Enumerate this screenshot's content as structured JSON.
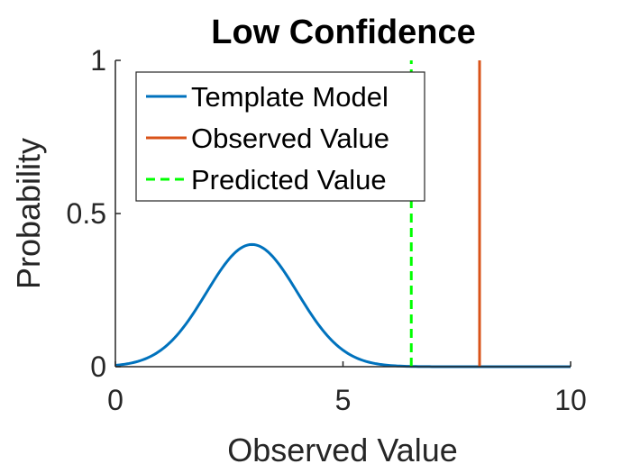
{
  "chart_data": {
    "type": "line",
    "title": "Low Confidence",
    "xlabel": "Observed Value",
    "ylabel": "Probability",
    "xlim": [
      0,
      10
    ],
    "ylim": [
      0,
      1
    ],
    "xticks": [
      0,
      5,
      10
    ],
    "xtick_labels": [
      "0",
      "5",
      "10"
    ],
    "yticks": [
      0,
      0.5,
      1
    ],
    "ytick_labels": [
      "0",
      "0.5",
      "1"
    ],
    "grid": false,
    "legend_position": "top-left",
    "series": [
      {
        "name": "Template Model",
        "kind": "normal-pdf",
        "mean": 3,
        "std": 1,
        "peak": 0.399,
        "color": "#0072BD",
        "style": "solid"
      },
      {
        "name": "Observed Value",
        "kind": "vertical-line",
        "x": 8,
        "y_range": [
          0,
          1
        ],
        "color": "#D95319",
        "style": "solid"
      },
      {
        "name": "Predicted Value",
        "kind": "vertical-line",
        "x": 6.5,
        "y_range": [
          0,
          1
        ],
        "color": "#00FF00",
        "style": "dashed"
      }
    ]
  }
}
